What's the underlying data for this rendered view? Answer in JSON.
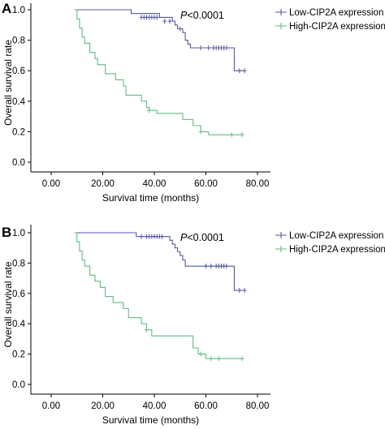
{
  "chart_data": [
    {
      "panel": "A",
      "type": "line",
      "subtype": "kaplan-meier",
      "xlabel": "Survival time (months)",
      "ylabel": "Overall survival rate",
      "xlim": [
        0,
        80
      ],
      "ylim": [
        0,
        1.0
      ],
      "xticks": [
        "0.00",
        "20.00",
        "40.00",
        "60.00",
        "80.00"
      ],
      "yticks": [
        "0.0",
        "0.2",
        "0.4",
        "0.6",
        "0.8",
        "1.0"
      ],
      "annotation": {
        "prefix": "P",
        "rest": "<0.0001"
      },
      "legend_position": "top-right",
      "grid": false,
      "series": [
        {
          "name": "Low-CIP2A expression",
          "color": "#5558a8",
          "start": 9,
          "steps": [
            [
              31,
              0.975
            ],
            [
              42,
              0.95
            ],
            [
              47,
              0.925
            ],
            [
              48,
              0.9
            ],
            [
              49,
              0.875
            ],
            [
              51,
              0.85
            ],
            [
              52,
              0.8
            ],
            [
              53,
              0.775
            ],
            [
              54,
              0.75
            ],
            [
              71,
              0.6
            ]
          ],
          "end": 75,
          "censored": [
            [
              35,
              0.95
            ],
            [
              36,
              0.95
            ],
            [
              37,
              0.95
            ],
            [
              38,
              0.95
            ],
            [
              39,
              0.95
            ],
            [
              40,
              0.95
            ],
            [
              41,
              0.95
            ],
            [
              44,
              0.925
            ],
            [
              46,
              0.925
            ],
            [
              50,
              0.875
            ],
            [
              58,
              0.75
            ],
            [
              61,
              0.75
            ],
            [
              63,
              0.75
            ],
            [
              64,
              0.75
            ],
            [
              65,
              0.75
            ],
            [
              66,
              0.75
            ],
            [
              67,
              0.75
            ],
            [
              68,
              0.75
            ],
            [
              73,
              0.6
            ],
            [
              75,
              0.6
            ]
          ]
        },
        {
          "name": "High-CIP2A expression",
          "color": "#5dbf81",
          "start": 9,
          "steps": [
            [
              10,
              0.94
            ],
            [
              11,
              0.88
            ],
            [
              12,
              0.82
            ],
            [
              13,
              0.78
            ],
            [
              15,
              0.72
            ],
            [
              17,
              0.68
            ],
            [
              18,
              0.64
            ],
            [
              21,
              0.58
            ],
            [
              25,
              0.54
            ],
            [
              28,
              0.5
            ],
            [
              29,
              0.44
            ],
            [
              35,
              0.4
            ],
            [
              37,
              0.36
            ],
            [
              38,
              0.34
            ],
            [
              41,
              0.32
            ],
            [
              51,
              0.28
            ],
            [
              55,
              0.24
            ],
            [
              58,
              0.2
            ],
            [
              61,
              0.18
            ]
          ],
          "end": 74,
          "censored": [
            [
              38,
              0.34
            ],
            [
              58,
              0.2
            ],
            [
              70,
              0.18
            ],
            [
              74,
              0.18
            ]
          ]
        }
      ]
    },
    {
      "panel": "B",
      "type": "line",
      "subtype": "kaplan-meier",
      "xlabel": "Survival time (months)",
      "ylabel": "Overall survival rate",
      "xlim": [
        0,
        80
      ],
      "ylim": [
        0,
        1.0
      ],
      "xticks": [
        "0.00",
        "20.00",
        "40.00",
        "60.00",
        "80.00"
      ],
      "yticks": [
        "0.0",
        "0.2",
        "0.4",
        "0.6",
        "0.8",
        "1.0"
      ],
      "annotation": {
        "prefix": "P",
        "rest": "<0.0001"
      },
      "legend_position": "top-right",
      "grid": false,
      "series": [
        {
          "name": "Low-CIP2A expression",
          "color": "#5558a8",
          "start": 9,
          "steps": [
            [
              33,
              0.975
            ],
            [
              46,
              0.95
            ],
            [
              47,
              0.925
            ],
            [
              48,
              0.9
            ],
            [
              49,
              0.875
            ],
            [
              50,
              0.85
            ],
            [
              51,
              0.82
            ],
            [
              52,
              0.78
            ],
            [
              71,
              0.62
            ]
          ],
          "end": 75,
          "censored": [
            [
              35,
              0.975
            ],
            [
              37,
              0.975
            ],
            [
              38,
              0.975
            ],
            [
              39,
              0.975
            ],
            [
              40,
              0.975
            ],
            [
              41,
              0.975
            ],
            [
              42,
              0.975
            ],
            [
              43,
              0.975
            ],
            [
              60,
              0.78
            ],
            [
              62,
              0.78
            ],
            [
              64,
              0.78
            ],
            [
              65,
              0.78
            ],
            [
              66,
              0.78
            ],
            [
              67,
              0.78
            ],
            [
              68,
              0.78
            ],
            [
              73,
              0.62
            ],
            [
              75,
              0.62
            ]
          ]
        },
        {
          "name": "High-CIP2A expression",
          "color": "#5dbf81",
          "start": 9,
          "steps": [
            [
              10,
              0.94
            ],
            [
              11,
              0.88
            ],
            [
              12,
              0.82
            ],
            [
              13,
              0.78
            ],
            [
              15,
              0.72
            ],
            [
              17,
              0.68
            ],
            [
              19,
              0.64
            ],
            [
              21,
              0.58
            ],
            [
              24,
              0.54
            ],
            [
              28,
              0.5
            ],
            [
              30,
              0.44
            ],
            [
              35,
              0.4
            ],
            [
              37,
              0.36
            ],
            [
              39,
              0.32
            ],
            [
              55,
              0.24
            ],
            [
              57,
              0.2
            ],
            [
              60,
              0.17
            ]
          ],
          "end": 74,
          "censored": [
            [
              37,
              0.36
            ],
            [
              58,
              0.2
            ],
            [
              62,
              0.17
            ],
            [
              65,
              0.17
            ],
            [
              74,
              0.17
            ]
          ]
        }
      ]
    }
  ]
}
